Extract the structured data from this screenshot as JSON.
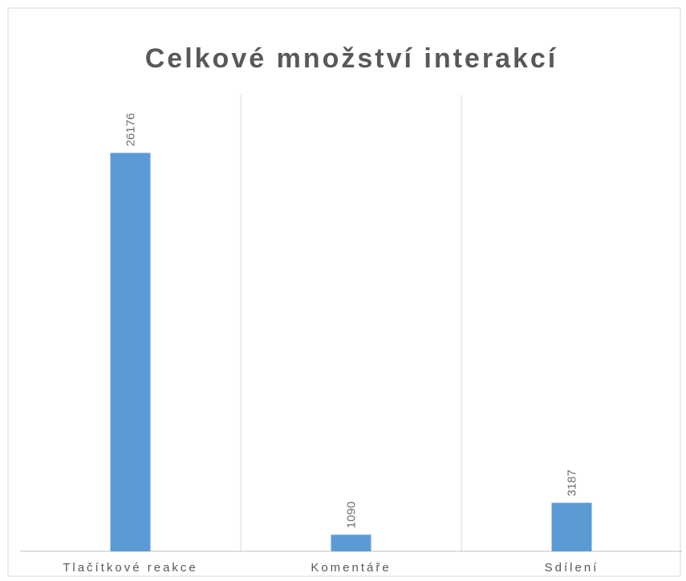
{
  "chart_data": {
    "type": "bar",
    "title": "Celkové množství interakcí",
    "categories": [
      "Tlačítkové reakce",
      "Komentáře",
      "Sdílení"
    ],
    "values": [
      26176,
      1090,
      3187
    ],
    "color": "#5b9bd5",
    "ylim": [
      0,
      30000
    ],
    "grid": true
  }
}
